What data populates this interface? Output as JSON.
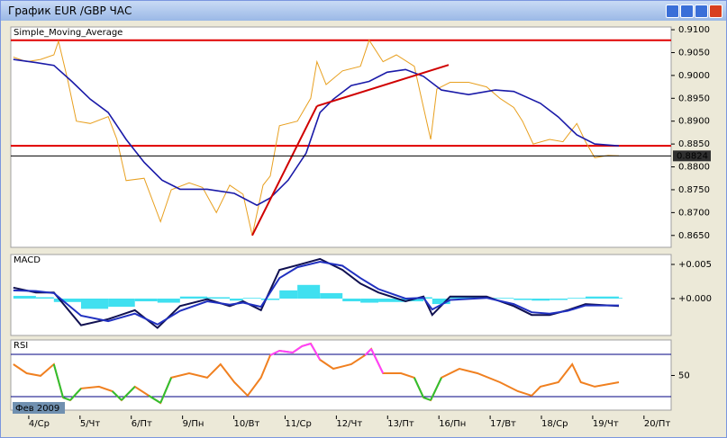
{
  "window": {
    "title": "График EUR /GBP  ЧАС"
  },
  "chart_data": [
    {
      "type": "line",
      "title": "Simple_Moving_Average",
      "xlim": [
        -0.35,
        12.53
      ],
      "ylim": [
        0.8624,
        0.9106
      ],
      "yticks": [
        {
          "value": 0.865,
          "label": "0.8650"
        },
        {
          "value": 0.87,
          "label": "0.8700"
        },
        {
          "value": 0.875,
          "label": "0.8750"
        },
        {
          "value": 0.88,
          "label": "0.8800"
        },
        {
          "value": 0.885,
          "label": "0.8850"
        },
        {
          "value": 0.89,
          "label": "0.8900"
        },
        {
          "value": 0.895,
          "label": "0.8950"
        },
        {
          "value": 0.9,
          "label": "0.9000"
        },
        {
          "value": 0.905,
          "label": "0.9050"
        },
        {
          "value": 0.91,
          "label": "0.9100"
        }
      ],
      "series": [
        {
          "color": "#e8a020",
          "x": [
            -0.3,
            -0.04,
            0.23,
            0.49,
            0.58,
            0.76,
            0.93,
            1.2,
            1.55,
            1.72,
            1.9,
            2.25,
            2.57,
            2.78,
            3.13,
            3.39,
            3.66,
            3.92,
            4.18,
            4.36,
            4.57,
            4.71,
            4.89,
            5.24,
            5.5,
            5.62,
            5.8,
            6.12,
            6.47,
            6.64,
            6.91,
            7.17,
            7.52,
            7.7,
            7.84,
            7.96,
            8.22,
            8.58,
            8.93,
            9.19,
            9.46,
            9.63,
            9.84,
            10.16,
            10.42,
            10.69,
            10.86,
            11.04,
            11.3,
            11.51
          ],
          "values": [
            0.904,
            0.903,
            0.9035,
            0.9045,
            0.9075,
            0.899,
            0.89,
            0.8895,
            0.891,
            0.886,
            0.877,
            0.8775,
            0.868,
            0.875,
            0.8765,
            0.8755,
            0.87,
            0.876,
            0.874,
            0.865,
            0.876,
            0.878,
            0.889,
            0.89,
            0.895,
            0.903,
            0.898,
            0.901,
            0.902,
            0.9077,
            0.903,
            0.9045,
            0.902,
            0.893,
            0.886,
            0.897,
            0.8985,
            0.8985,
            0.8975,
            0.895,
            0.893,
            0.89,
            0.885,
            0.886,
            0.8855,
            0.8895,
            0.8855,
            0.882,
            0.8825,
            0.8824
          ]
        },
        {
          "color": "#1a1aa8",
          "x": [
            -0.3,
            0.14,
            0.49,
            0.84,
            1.2,
            1.55,
            1.9,
            2.25,
            2.6,
            2.95,
            3.48,
            4.01,
            4.45,
            4.71,
            5.06,
            5.41,
            5.68,
            5.94,
            6.29,
            6.64,
            6.99,
            7.35,
            7.7,
            8.05,
            8.58,
            9.1,
            9.46,
            9.98,
            10.33,
            10.69,
            11.04,
            11.51
          ],
          "values": [
            0.9035,
            0.9028,
            0.9022,
            0.8987,
            0.8948,
            0.8919,
            0.886,
            0.881,
            0.8771,
            0.8751,
            0.8751,
            0.8742,
            0.8716,
            0.8732,
            0.8771,
            0.883,
            0.8919,
            0.8948,
            0.8978,
            0.8987,
            0.9007,
            0.9013,
            0.8998,
            0.8968,
            0.8958,
            0.8968,
            0.8965,
            0.8939,
            0.8909,
            0.887,
            0.885,
            0.8846
          ]
        }
      ],
      "hlines": [
        {
          "value": 0.9077,
          "color": "#e00000"
        },
        {
          "value": 0.8846,
          "color": "#e00000"
        }
      ],
      "trendlines": [
        {
          "color": "#d00000",
          "x": [
            4.36,
            5.62
          ],
          "values": [
            0.865,
            0.8933
          ]
        },
        {
          "color": "#d00000",
          "x": [
            5.62,
            8.19
          ],
          "values": [
            0.8933,
            0.9023
          ]
        }
      ],
      "current_price": {
        "value": 0.8824,
        "label": "0.8824"
      }
    },
    {
      "type": "macd",
      "title": "MACD",
      "xlim": [
        -0.35,
        12.53
      ],
      "ylim": [
        -0.0054,
        0.00645
      ],
      "yticks": [
        {
          "value": 0.005,
          "label": "+0.005"
        },
        {
          "value": 0,
          "label": "+0.000"
        }
      ],
      "x": [
        -0.3,
        0.14,
        0.49,
        1.02,
        1.55,
        2.07,
        2.51,
        2.95,
        3.48,
        3.92,
        4.18,
        4.53,
        4.89,
        5.24,
        5.68,
        6.12,
        6.47,
        6.82,
        7.35,
        7.7,
        7.87,
        8.22,
        8.93,
        9.46,
        9.81,
        10.16,
        10.51,
        10.86,
        11.51
      ],
      "histogram": {
        "color": "#40e0f0",
        "values": [
          0.0004,
          0.0002,
          -0.0005,
          -0.0015,
          -0.0012,
          -0.0004,
          -0.0006,
          0.0003,
          0.0002,
          -0.0003,
          0.0001,
          -0.0002,
          0.0012,
          0.002,
          0.0008,
          -0.0004,
          -0.0006,
          -0.0005,
          -0.0004,
          0.0002,
          -0.0008,
          0.0003,
          0.0001,
          -0.0002,
          -0.0003,
          -0.0002,
          0.0001,
          0.0003,
          0.0001
        ]
      },
      "series": [
        {
          "color": "#101050",
          "values": [
            0.0016,
            0.0009,
            0.0009,
            -0.0039,
            -0.003,
            -0.0017,
            -0.0043,
            -0.0011,
            -0.0001,
            -0.0011,
            -0.0004,
            -0.0017,
            0.0042,
            0.0049,
            0.0058,
            0.0042,
            0.0022,
            0.0009,
            -0.0004,
            0.0003,
            -0.0024,
            0.0003,
            0.0003,
            -0.0011,
            -0.0024,
            -0.0024,
            -0.0017,
            -0.0008,
            -0.0011
          ]
        },
        {
          "color": "#2030c0",
          "values": [
            0.0012,
            0.0011,
            0.0008,
            -0.0025,
            -0.0033,
            -0.0022,
            -0.0038,
            -0.0018,
            -0.0004,
            -0.0009,
            -0.0006,
            -0.0012,
            0.003,
            0.0046,
            0.0054,
            0.0048,
            0.003,
            0.0014,
            0.0,
            0.0001,
            -0.0016,
            -0.0002,
            0.0001,
            -0.0008,
            -0.002,
            -0.0022,
            -0.0018,
            -0.001,
            -0.001
          ]
        }
      ]
    },
    {
      "type": "rsi",
      "title": "RSI",
      "xlim": [
        -0.35,
        12.53
      ],
      "ylim": [
        17.2,
        83.6
      ],
      "yticks": [
        50
      ],
      "levels": [
        30,
        70
      ],
      "color": "#f08020",
      "overbought_color": "#ff40ff",
      "oversold_color": "#30c030",
      "x": [
        -0.3,
        -0.04,
        0.23,
        0.49,
        0.67,
        0.81,
        1.02,
        1.37,
        1.63,
        1.81,
        2.07,
        2.34,
        2.57,
        2.78,
        3.13,
        3.48,
        3.74,
        4.01,
        4.27,
        4.53,
        4.71,
        4.89,
        5.15,
        5.33,
        5.5,
        5.68,
        5.94,
        6.29,
        6.56,
        6.68,
        6.91,
        7.26,
        7.52,
        7.7,
        7.84,
        8.05,
        8.4,
        8.75,
        9.19,
        9.54,
        9.81,
        9.98,
        10.33,
        10.6,
        10.77,
        11.04,
        11.51
      ],
      "values": [
        60.6,
        52.1,
        49.6,
        60.6,
        29.1,
        26.6,
        37.7,
        39.4,
        35.1,
        26.6,
        39.4,
        30.9,
        24.0,
        47.9,
        52.1,
        47.9,
        60.6,
        43.6,
        30.9,
        47.9,
        69.1,
        73.4,
        71.7,
        77.7,
        80.2,
        64.9,
        56.4,
        60.6,
        69.1,
        75.1,
        52.1,
        52.1,
        47.9,
        29.1,
        26.6,
        47.9,
        56.4,
        52.1,
        43.6,
        35.1,
        30.9,
        39.4,
        43.6,
        60.6,
        43.6,
        39.4,
        43.6
      ],
      "xticks": [
        {
          "value": 0,
          "label": "4/Ср"
        },
        {
          "value": 1,
          "label": "5/Чт"
        },
        {
          "value": 2,
          "label": "6/Пт"
        },
        {
          "value": 3,
          "label": "9/Пн"
        },
        {
          "value": 4,
          "label": "10/Вт"
        },
        {
          "value": 5,
          "label": "11/Ср"
        },
        {
          "value": 6,
          "label": "12/Чт"
        },
        {
          "value": 7,
          "label": "13/Пт"
        },
        {
          "value": 8,
          "label": "16/Пн"
        },
        {
          "value": 9,
          "label": "17/Вт"
        },
        {
          "value": 10,
          "label": "18/Ср"
        },
        {
          "value": 11,
          "label": "19/Чт"
        },
        {
          "value": 12,
          "label": "20/Пт"
        }
      ],
      "period_label": "Фев 2009"
    }
  ]
}
